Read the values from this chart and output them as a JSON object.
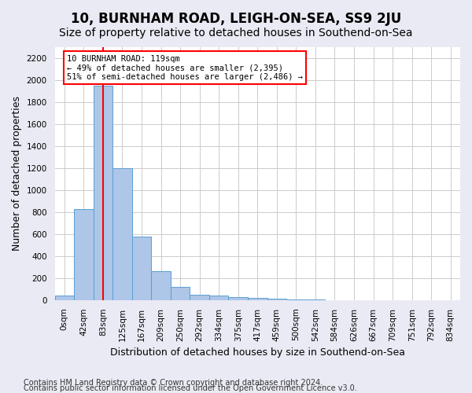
{
  "title": "10, BURNHAM ROAD, LEIGH-ON-SEA, SS9 2JU",
  "subtitle": "Size of property relative to detached houses in Southend-on-Sea",
  "xlabel": "Distribution of detached houses by size in Southend-on-Sea",
  "ylabel": "Number of detached properties",
  "footnote1": "Contains HM Land Registry data © Crown copyright and database right 2024.",
  "footnote2": "Contains public sector information licensed under the Open Government Licence v3.0.",
  "bar_labels": [
    "0sqm",
    "42sqm",
    "83sqm",
    "125sqm",
    "167sqm",
    "209sqm",
    "250sqm",
    "292sqm",
    "334sqm",
    "375sqm",
    "417sqm",
    "459sqm",
    "500sqm",
    "542sqm",
    "584sqm",
    "626sqm",
    "667sqm",
    "709sqm",
    "751sqm",
    "792sqm",
    "834sqm"
  ],
  "bar_values": [
    40,
    830,
    1950,
    1200,
    580,
    260,
    120,
    50,
    40,
    25,
    20,
    10,
    5,
    3,
    2,
    2,
    1,
    1,
    1,
    0,
    0
  ],
  "bar_color": "#aec6e8",
  "bar_edge_color": "#5a9fd4",
  "red_line_index": 2.5,
  "annotation_text": "10 BURNHAM ROAD: 119sqm\n← 49% of detached houses are smaller (2,395)\n51% of semi-detached houses are larger (2,486) →",
  "annotation_box_color": "white",
  "annotation_box_edge_color": "red",
  "red_line_color": "red",
  "ylim": [
    0,
    2300
  ],
  "yticks": [
    0,
    200,
    400,
    600,
    800,
    1000,
    1200,
    1400,
    1600,
    1800,
    2000,
    2200
  ],
  "bg_color": "#eaeaf4",
  "plot_bg_color": "white",
  "title_fontsize": 12,
  "subtitle_fontsize": 10,
  "axis_fontsize": 9,
  "tick_fontsize": 7.5,
  "footnote_fontsize": 7
}
